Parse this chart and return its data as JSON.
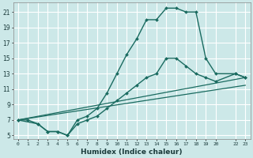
{
  "xlabel": "Humidex (Indice chaleur)",
  "bg_color": "#cce8e8",
  "line_color": "#1a6b60",
  "grid_color": "#b0d8d8",
  "xlim": [
    -0.5,
    23.5
  ],
  "ylim": [
    4.5,
    22.2
  ],
  "xtick_positions": [
    0,
    1,
    2,
    3,
    4,
    5,
    6,
    7,
    8,
    9,
    10,
    11,
    12,
    13,
    14,
    15,
    16,
    17,
    18,
    19,
    20,
    22,
    23
  ],
  "xtick_labels": [
    "0",
    "1",
    "2",
    "3",
    "4",
    "5",
    "6",
    "7",
    "8",
    "9",
    "10",
    "11",
    "12",
    "13",
    "14",
    "15",
    "16",
    "17",
    "18",
    "19",
    "20",
    "22",
    "23"
  ],
  "yticks": [
    5,
    7,
    9,
    11,
    13,
    15,
    17,
    19,
    21
  ],
  "lines": [
    {
      "x": [
        0,
        1,
        2,
        3,
        4,
        5,
        6,
        7,
        8,
        9,
        10,
        11,
        12,
        13,
        14,
        15,
        16,
        17,
        18,
        19,
        20,
        22,
        23
      ],
      "y": [
        7,
        7,
        6.5,
        5.5,
        5.5,
        5,
        7,
        7.5,
        8.5,
        10.5,
        13,
        15.5,
        17.5,
        20,
        20,
        21.5,
        21.5,
        21,
        21,
        15,
        13,
        13,
        12.5
      ],
      "marker": "D",
      "markersize": 2.0,
      "linewidth": 1.0
    },
    {
      "x": [
        0,
        2,
        3,
        4,
        5,
        6,
        7,
        8,
        9,
        10,
        11,
        12,
        13,
        14,
        15,
        16,
        17,
        18,
        19,
        20,
        22,
        23
      ],
      "y": [
        7,
        6.5,
        5.5,
        5.5,
        5,
        6.5,
        7,
        7.5,
        8.5,
        9.5,
        10.5,
        11.5,
        12.5,
        13,
        15,
        15,
        14,
        13,
        12.5,
        12,
        13,
        12.5
      ],
      "marker": "D",
      "markersize": 2.0,
      "linewidth": 1.0
    },
    {
      "x": [
        0,
        23
      ],
      "y": [
        7,
        12.5
      ],
      "marker": null,
      "markersize": 0,
      "linewidth": 0.9
    },
    {
      "x": [
        0,
        23
      ],
      "y": [
        7,
        11.5
      ],
      "marker": null,
      "markersize": 0,
      "linewidth": 0.9
    }
  ]
}
